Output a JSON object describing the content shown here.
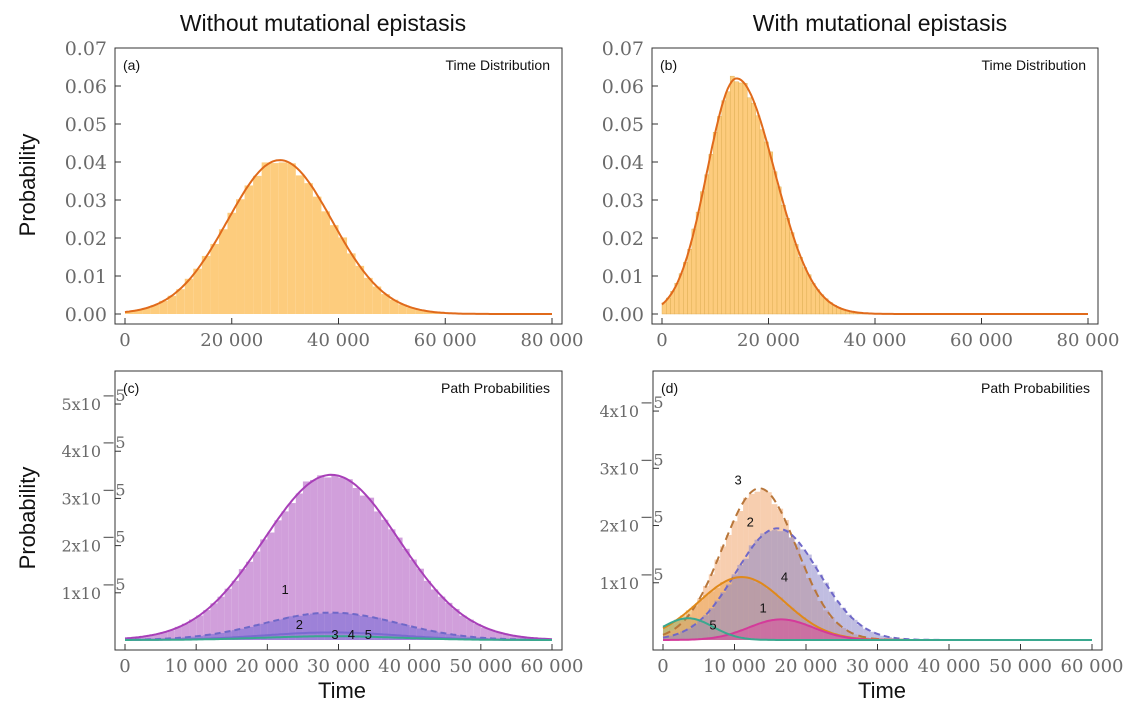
{
  "titles": {
    "left": "Without mutational epistasis",
    "right": "With mutational epistasis"
  },
  "axis_labels": {
    "ylabel_top": "Probability",
    "ylabel_bottom": "Probability",
    "xlabel_left": "Time",
    "xlabel_right": "Time"
  },
  "colors": {
    "orange_fill": "#fdc976",
    "orange_line": "#e06a1b",
    "purple_fill": "#cf9ad9",
    "purple_line": "#a83fb8",
    "blue_dash": "#6f68c8",
    "teal": "#3aa88f",
    "brown_dash": "#b8763a",
    "magenta": "#d43a9a",
    "frame": "#333333"
  },
  "chart_data": [
    {
      "id": "a",
      "type": "bar",
      "panel_label": "(a)",
      "title": "Time Distribution",
      "xlim": [
        0,
        80000
      ],
      "ylim": [
        0,
        0.07
      ],
      "xticks": [
        0,
        20000,
        40000,
        60000,
        80000
      ],
      "xtick_labels": [
        "0",
        "20 000",
        "40 000",
        "60 000",
        "80 000"
      ],
      "yticks": [
        0,
        0.01,
        0.02,
        0.03,
        0.04,
        0.05,
        0.06,
        0.07
      ],
      "ytick_labels": [
        "0.00",
        "0.01",
        "0.02",
        "0.03",
        "0.04",
        "0.05",
        "0.06",
        "0.07"
      ],
      "series": [
        {
          "kind": "hist",
          "mean": 29000,
          "sd": 9800,
          "peak": 0.0405,
          "binwidth": 1600,
          "color": "#fdc976"
        },
        {
          "kind": "curve",
          "mean": 29000,
          "sd": 9800,
          "peak": 0.0405,
          "color": "#e06a1b",
          "dash": ""
        }
      ],
      "annotations": []
    },
    {
      "id": "b",
      "type": "bar",
      "panel_label": "(b)",
      "title": "Time Distribution",
      "xlim": [
        0,
        80000
      ],
      "ylim": [
        0,
        0.07
      ],
      "xticks": [
        0,
        20000,
        40000,
        60000,
        80000
      ],
      "xtick_labels": [
        "0",
        "20 000",
        "40 000",
        "60 000",
        "80 000"
      ],
      "yticks": [
        0,
        0.01,
        0.02,
        0.03,
        0.04,
        0.05,
        0.06,
        0.07
      ],
      "ytick_labels": [
        "0.00",
        "0.01",
        "0.02",
        "0.03",
        "0.04",
        "0.05",
        "0.06",
        "0.07"
      ],
      "series": [
        {
          "kind": "hist",
          "mean": 14000,
          "sd": 6500,
          "peak": 0.062,
          "binwidth": 800,
          "color": "#fdc976",
          "skew": 1
        },
        {
          "kind": "curve",
          "mean": 14000,
          "sd": 6500,
          "peak": 0.062,
          "color": "#e06a1b",
          "dash": "",
          "skew": 1
        }
      ],
      "annotations": []
    },
    {
      "id": "c",
      "type": "bar",
      "panel_label": "(c)",
      "title": "Path Probabilities",
      "xlim": [
        0,
        60000
      ],
      "ylim": [
        0,
        5.7e-05
      ],
      "xticks": [
        0,
        10000,
        20000,
        30000,
        40000,
        50000,
        60000
      ],
      "xtick_labels": [
        "0",
        "10 000",
        "20 000",
        "30 000",
        "40 000",
        "50 000",
        "60 000"
      ],
      "yticks": [
        1e-05,
        2e-05,
        3e-05,
        4e-05,
        5e-05
      ],
      "ytick_labels": [
        "1",
        "2",
        "3",
        "4",
        "5"
      ],
      "ytick_prefix": "x10",
      "ytick_exp": "−5",
      "series": [
        {
          "kind": "hist",
          "mean": 29000,
          "sd": 9500,
          "peak": 3.5e-05,
          "binwidth": 1000,
          "color": "#cf9ad9"
        },
        {
          "kind": "curve",
          "mean": 29000,
          "sd": 9500,
          "peak": 3.5e-05,
          "color": "#a83fb8",
          "dash": ""
        },
        {
          "kind": "hist",
          "mean": 29000,
          "sd": 9500,
          "peak": 5.8e-06,
          "binwidth": 1000,
          "color": "#9a7fd8"
        },
        {
          "kind": "curve",
          "mean": 29000,
          "sd": 9500,
          "peak": 5.8e-06,
          "color": "#6f68c8",
          "dash": "6,4"
        },
        {
          "kind": "curve",
          "mean": 29000,
          "sd": 9500,
          "peak": 1.6e-06,
          "color": "#7a6ad0",
          "dash": ""
        },
        {
          "kind": "curve",
          "mean": 29000,
          "sd": 9500,
          "peak": 8e-07,
          "color": "#3aa88f",
          "dash": ""
        }
      ],
      "annotations": [
        {
          "text": "1",
          "x": 22500,
          "y": 9.8e-06
        },
        {
          "text": "2",
          "x": 24500,
          "y": 2.3e-06
        },
        {
          "text": "3",
          "x": 29500,
          "y": 2e-07
        },
        {
          "text": "4",
          "x": 31800,
          "y": 2e-07
        },
        {
          "text": "5",
          "x": 34200,
          "y": 2e-07
        }
      ]
    },
    {
      "id": "d",
      "type": "bar",
      "panel_label": "(d)",
      "title": "Path Probabilities",
      "xlim": [
        0,
        60000
      ],
      "ylim": [
        0,
        4.7e-05
      ],
      "xticks": [
        0,
        10000,
        20000,
        30000,
        40000,
        50000,
        60000
      ],
      "xtick_labels": [
        "0",
        "10 000",
        "20 000",
        "30 000",
        "40 000",
        "50 000",
        "60 000"
      ],
      "yticks": [
        1e-05,
        2e-05,
        3e-05,
        4e-05
      ],
      "ytick_labels": [
        "1",
        "2",
        "3",
        "4"
      ],
      "ytick_prefix": "x10",
      "ytick_exp": "−5",
      "series": [
        {
          "kind": "hist",
          "mean": 3500,
          "sd": 3500,
          "peak": 3.8e-06,
          "binwidth": 800,
          "color": "#3aa88f"
        },
        {
          "kind": "hist",
          "mean": 11000,
          "sd": 6000,
          "peak": 1.1e-05,
          "binwidth": 800,
          "color": "#e8a53a"
        },
        {
          "kind": "hist",
          "mean": 13500,
          "sd": 5200,
          "peak": 2.65e-05,
          "binwidth": 800,
          "color": "#f0a56e"
        },
        {
          "kind": "hist",
          "mean": 16000,
          "sd": 5800,
          "peak": 1.95e-05,
          "binwidth": 800,
          "color": "#8c86c8"
        },
        {
          "kind": "hist",
          "mean": 16500,
          "sd": 4500,
          "peak": 3.6e-06,
          "binwidth": 800,
          "color": "#d84a9e"
        },
        {
          "kind": "curve",
          "mean": 13500,
          "sd": 5200,
          "peak": 2.65e-05,
          "color": "#b8763a",
          "dash": "8,5"
        },
        {
          "kind": "curve",
          "mean": 16000,
          "sd": 5800,
          "peak": 1.95e-05,
          "color": "#6f68c8",
          "dash": "6,4"
        },
        {
          "kind": "curve",
          "mean": 11000,
          "sd": 6000,
          "peak": 1.1e-05,
          "color": "#e0891a",
          "dash": ""
        },
        {
          "kind": "curve",
          "mean": 16500,
          "sd": 4500,
          "peak": 3.6e-06,
          "color": "#d43a9a",
          "dash": ""
        },
        {
          "kind": "curve",
          "mean": 3500,
          "sd": 3500,
          "peak": 3.8e-06,
          "color": "#3aa88f",
          "dash": ""
        }
      ],
      "annotations": [
        {
          "text": "3",
          "x": 10500,
          "y": 2.72e-05
        },
        {
          "text": "2",
          "x": 12200,
          "y": 1.98e-05
        },
        {
          "text": "4",
          "x": 17000,
          "y": 1.02e-05
        },
        {
          "text": "1",
          "x": 14000,
          "y": 4.8e-06
        },
        {
          "text": "5",
          "x": 7000,
          "y": 1.8e-06
        }
      ]
    }
  ]
}
